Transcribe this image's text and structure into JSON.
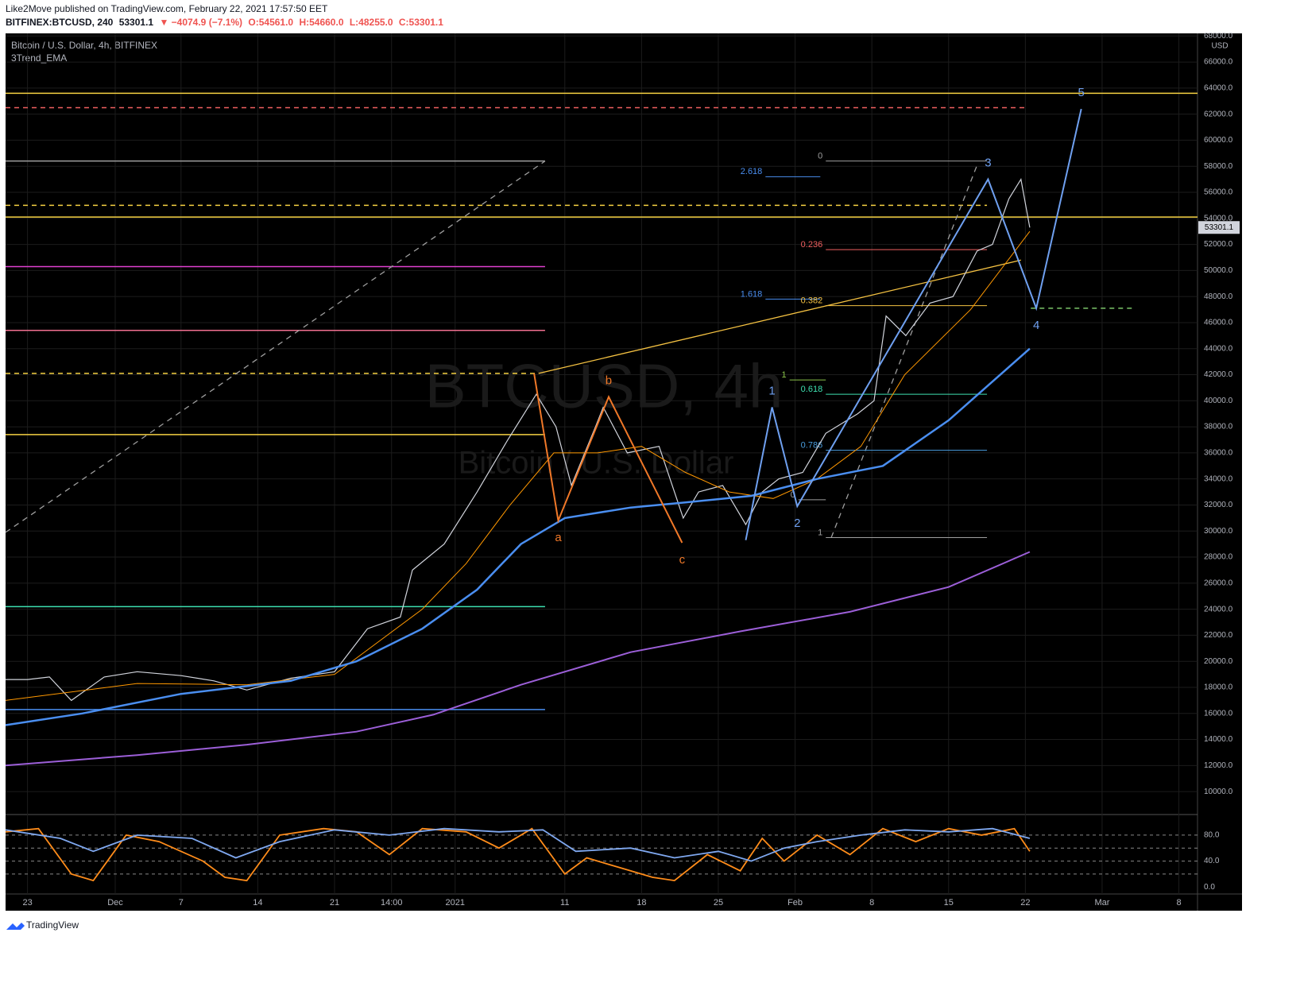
{
  "header": {
    "published": "Like2Move published on TradingView.com, February 22, 2021 17:57:50 EET",
    "symbol": "BITFINEX:BTCUSD, 240",
    "price": "53301.1",
    "change": "▼ −4074.9 (−7.1%)",
    "open": "O:54561.0",
    "high": "H:54660.0",
    "low": "L:48255.0",
    "close": "C:53301.1"
  },
  "footer": "TradingView",
  "chart_data": {
    "type": "line",
    "legend_lines": [
      "Bitcoin / U.S. Dollar, 4h, BITFINEX",
      "3Trend_EMA"
    ],
    "watermark": [
      "BTCUSD, 4h",
      "Bitcoin / U.S. Dollar"
    ],
    "currency": "USD",
    "last_price": 53301.1,
    "xlim": [
      -2,
      106.7
    ],
    "xticks": [
      {
        "value": 0,
        "label": "23"
      },
      {
        "value": 8,
        "label": "Dec"
      },
      {
        "value": 14,
        "label": "7"
      },
      {
        "value": 21,
        "label": "14"
      },
      {
        "value": 28,
        "label": "21"
      },
      {
        "value": 33.2,
        "label": "14:00"
      },
      {
        "value": 39,
        "label": "2021"
      },
      {
        "value": 49,
        "label": "11"
      },
      {
        "value": 56,
        "label": "18"
      },
      {
        "value": 63,
        "label": "25"
      },
      {
        "value": 70,
        "label": "Feb"
      },
      {
        "value": 77,
        "label": "8"
      },
      {
        "value": 84,
        "label": "15"
      },
      {
        "value": 91,
        "label": "22"
      },
      {
        "value": 98,
        "label": "Mar"
      },
      {
        "value": 105,
        "label": "8"
      }
    ],
    "ylim": [
      8300,
      68200
    ],
    "yticks": [
      {
        "value": 10000,
        "label": "10000.0"
      },
      {
        "value": 12000,
        "label": "12000.0"
      },
      {
        "value": 14000,
        "label": "14000.0"
      },
      {
        "value": 16000,
        "label": "16000.0"
      },
      {
        "value": 18000,
        "label": "18000.0"
      },
      {
        "value": 20000,
        "label": "20000.0"
      },
      {
        "value": 22000,
        "label": "22000.0"
      },
      {
        "value": 24000,
        "label": "24000.0"
      },
      {
        "value": 26000,
        "label": "26000.0"
      },
      {
        "value": 28000,
        "label": "28000.0"
      },
      {
        "value": 30000,
        "label": "30000.0"
      },
      {
        "value": 32000,
        "label": "32000.0"
      },
      {
        "value": 34000,
        "label": "34000.0"
      },
      {
        "value": 36000,
        "label": "36000.0"
      },
      {
        "value": 38000,
        "label": "38000.0"
      },
      {
        "value": 40000,
        "label": "40000.0"
      },
      {
        "value": 42000,
        "label": "42000.0"
      },
      {
        "value": 44000,
        "label": "44000.0"
      },
      {
        "value": 46000,
        "label": "46000.0"
      },
      {
        "value": 48000,
        "label": "48000.0"
      },
      {
        "value": 50000,
        "label": "50000.0"
      },
      {
        "value": 52000,
        "label": "52000.0"
      },
      {
        "value": 54000,
        "label": "54000.0"
      },
      {
        "value": 56000,
        "label": "56000.0"
      },
      {
        "value": 58000,
        "label": "58000.0"
      },
      {
        "value": 60000,
        "label": "60000.0"
      },
      {
        "value": 62000,
        "label": "62000.0"
      },
      {
        "value": 64000,
        "label": "64000.0"
      },
      {
        "value": 66000,
        "label": "66000.0"
      },
      {
        "value": 68000,
        "label": "68000.0"
      }
    ],
    "grid": true,
    "series": [
      {
        "color": "#d1d4dc",
        "width": 1.2,
        "x": [
          -2,
          0,
          2,
          4,
          7,
          10,
          14,
          17,
          20,
          24,
          28,
          31,
          34,
          35.1,
          38,
          41,
          43.8,
          46.4,
          48.2,
          49.6,
          51.8,
          52.5,
          54.7,
          57.6,
          59.8,
          61.2,
          63.4,
          65.5,
          67,
          68.5,
          70.7,
          72.8,
          75.7,
          77.2,
          78.3,
          80.1,
          82.3,
          84.4,
          86.6,
          88,
          89.5,
          90.6,
          91.4
        ],
        "values": [
          18600,
          18600,
          18800,
          17000,
          18800,
          19200,
          18900,
          18500,
          17800,
          18700,
          19200,
          22500,
          23400,
          27000,
          29000,
          33000,
          37000,
          40500,
          38000,
          33500,
          38000,
          39500,
          36000,
          36500,
          31000,
          33000,
          33500,
          30500,
          33000,
          34000,
          34500,
          37500,
          39000,
          40000,
          46500,
          45000,
          47500,
          48000,
          51500,
          52000,
          55500,
          57000,
          53301
        ]
      },
      {
        "color": "#ff9800",
        "width": 1,
        "x": [
          -2,
          10,
          20,
          28,
          32,
          36,
          40,
          44,
          48,
          52,
          56,
          60,
          64,
          68,
          72,
          76,
          80,
          86,
          91.4
        ],
        "values": [
          17000,
          18300,
          18200,
          19000,
          21500,
          24000,
          27500,
          32000,
          36000,
          36000,
          36500,
          34500,
          33000,
          32500,
          34000,
          36500,
          42000,
          47000,
          53000
        ]
      },
      {
        "color": "#4a8ef0",
        "width": 2.5,
        "x": [
          -2,
          5,
          14,
          24,
          30,
          36,
          41,
          45,
          49,
          55,
          60,
          66,
          72,
          78,
          84,
          91.4
        ],
        "values": [
          15100,
          16000,
          17500,
          18500,
          20000,
          22500,
          25500,
          29000,
          31000,
          31800,
          32200,
          32700,
          34000,
          35000,
          38500,
          44000
        ]
      },
      {
        "color": "#9c5fd8",
        "width": 2,
        "x": [
          -2,
          10,
          20,
          30,
          37,
          45,
          55,
          65,
          75,
          84,
          91.4
        ],
        "values": [
          12000,
          12800,
          13600,
          14600,
          15900,
          18200,
          20700,
          22300,
          23800,
          25700,
          28400
        ]
      }
    ],
    "levels": [
      {
        "value": 63600,
        "color": "#f5d142",
        "dash": false,
        "x": [
          -2,
          106.7
        ]
      },
      {
        "value": 62500,
        "color": "#f06060",
        "dash": true,
        "x": [
          -2,
          91.2
        ]
      },
      {
        "value": 58400,
        "color": "#9e9e9e",
        "dash": false,
        "x": [
          -2,
          47.2
        ]
      },
      {
        "value": 55000,
        "color": "#f5d142",
        "dash": true,
        "x": [
          -2,
          87.5
        ]
      },
      {
        "value": 54100,
        "color": "#f5d142",
        "dash": false,
        "x": [
          -2,
          106.7
        ]
      },
      {
        "value": 50300,
        "color": "#e040d0",
        "dash": false,
        "x": [
          -2,
          47.2
        ]
      },
      {
        "value": 45400,
        "color": "#f07090",
        "dash": false,
        "x": [
          -2,
          47.2
        ]
      },
      {
        "value": 42100,
        "color": "#f5d142",
        "dash": true,
        "x": [
          -2,
          46.6
        ]
      },
      {
        "value": 37400,
        "color": "#f5d142",
        "dash": false,
        "x": [
          -2,
          47.2
        ]
      },
      {
        "value": 24200,
        "color": "#3ee0b0",
        "dash": false,
        "x": [
          -2,
          47.2
        ]
      },
      {
        "value": 16300,
        "color": "#4a8ef0",
        "dash": false,
        "x": [
          -2,
          47.2
        ]
      },
      {
        "value": 47100,
        "color": "#7cc56a",
        "dash": true,
        "x": [
          91.5,
          101
        ]
      }
    ],
    "trendlines": [
      {
        "color": "#9e9e9e",
        "dash": true,
        "x": [
          -2,
          47.2
        ],
        "values": [
          29900,
          58400
        ]
      },
      {
        "color": "#f5c242",
        "dash": false,
        "x": [
          46.6,
          90.6
        ],
        "values": [
          42100,
          50800
        ]
      },
      {
        "color": "#9e9e9e",
        "dash": true,
        "x": [
          73.3,
          86.7
        ],
        "values": [
          29500,
          58300
        ]
      }
    ],
    "fib": [
      {
        "label": "0",
        "value": 58400,
        "color": "#9e9e9e",
        "x": [
          72.8,
          87.5
        ]
      },
      {
        "label": "2.618",
        "value": 57200,
        "color": "#4a8ef0",
        "x": [
          67.3,
          72.3
        ]
      },
      {
        "label": "0.236",
        "value": 51600,
        "color": "#f06060",
        "x": [
          72.8,
          87.5
        ]
      },
      {
        "label": "1.618",
        "value": 47800,
        "color": "#4a8ef0",
        "x": [
          67.3,
          72.3
        ]
      },
      {
        "label": "0.382",
        "value": 47300,
        "color": "#f5c242",
        "x": [
          72.8,
          87.5
        ]
      },
      {
        "label": "1",
        "value": 41600,
        "color": "#8bc34a",
        "x": [
          69.5,
          72.8
        ]
      },
      {
        "label": "0.618",
        "value": 40500,
        "color": "#3ee0b0",
        "x": [
          72.8,
          87.5
        ]
      },
      {
        "label": "0.786",
        "value": 36200,
        "color": "#4a9ee0",
        "x": [
          72.8,
          87.5
        ]
      },
      {
        "label": "0",
        "value": 32400,
        "color": "#9e9e9e",
        "x": [
          70.3,
          72.8
        ]
      },
      {
        "label": "1",
        "value": 29500,
        "color": "#9e9e9e",
        "x": [
          72.8,
          87.5
        ]
      }
    ],
    "waves": [
      {
        "color": "#f07828",
        "x": [
          46.2,
          48.4,
          53,
          59.7
        ],
        "values": [
          42100,
          30800,
          40300,
          29100
        ],
        "labels": [
          null,
          "a",
          "b",
          "c"
        ]
      },
      {
        "color": "#6fa0f0",
        "x": [
          65.5,
          67.9,
          70.2,
          87.6,
          92,
          96.1
        ],
        "values": [
          29300,
          39500,
          31900,
          57000,
          47100,
          62400
        ],
        "labels": [
          null,
          "1",
          "2",
          "3",
          "4",
          "5"
        ]
      }
    ],
    "oscillator": {
      "ylim": [
        -7,
        108
      ],
      "yticks": [
        {
          "value": 0,
          "label": "0.0"
        },
        {
          "value": 40,
          "label": "40.0"
        },
        {
          "value": 80,
          "label": "80.0"
        }
      ],
      "levels": [
        80,
        60,
        40,
        20
      ],
      "series": [
        {
          "color": "#ff8c1a",
          "x": [
            -2,
            1,
            4,
            6,
            9,
            12,
            16,
            18,
            20,
            23,
            27,
            30,
            33,
            36,
            40,
            43,
            46,
            49,
            51,
            54,
            57,
            59,
            62,
            65,
            67,
            69,
            72,
            75,
            78,
            81,
            84,
            87,
            90,
            91.4
          ],
          "values": [
            85,
            90,
            20,
            10,
            80,
            70,
            40,
            15,
            10,
            80,
            90,
            85,
            50,
            90,
            85,
            60,
            90,
            20,
            45,
            30,
            15,
            10,
            50,
            25,
            75,
            40,
            80,
            50,
            90,
            70,
            90,
            80,
            90,
            55
          ]
        },
        {
          "color": "#7fa8f0",
          "x": [
            -2,
            3,
            6,
            10,
            15,
            19,
            23,
            28,
            33,
            38,
            43,
            47,
            50,
            55,
            59,
            63,
            66,
            69,
            72,
            76,
            80,
            84,
            88,
            91.4
          ],
          "values": [
            88,
            75,
            55,
            80,
            75,
            45,
            70,
            88,
            80,
            90,
            85,
            88,
            55,
            60,
            45,
            55,
            40,
            60,
            70,
            80,
            88,
            85,
            90,
            75
          ]
        }
      ]
    }
  }
}
